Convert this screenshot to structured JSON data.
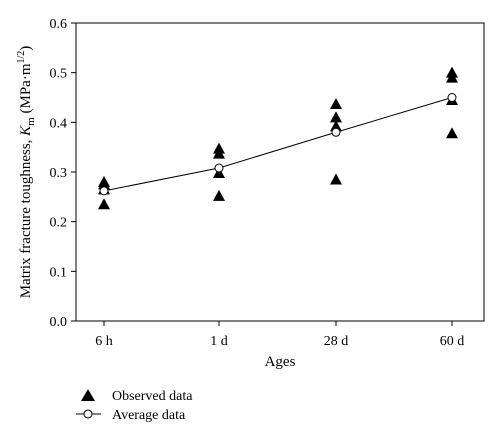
{
  "chart_data": {
    "type": "scatter",
    "title": "",
    "xlabel": "Ages",
    "ylabel_prefix": "Matrix fracture toughness, ",
    "ylabel_symbol": "K",
    "ylabel_subscript": "m",
    "ylabel_unit_open": " (MPa·m",
    "ylabel_unit_superscript": "1/2",
    "ylabel_unit_close": ")",
    "categories": [
      "6 h",
      "1 d",
      "28 d",
      "60 d"
    ],
    "ylim": [
      0,
      0.6
    ],
    "yticks": [
      0.0,
      0.1,
      0.2,
      0.3,
      0.4,
      0.5,
      0.6
    ],
    "ytick_labels": [
      "0.0",
      "0.1",
      "0.2",
      "0.3",
      "0.4",
      "0.5",
      "0.6"
    ],
    "grid": false,
    "legend_position": "bottom-left",
    "series": [
      {
        "name": "Observed data",
        "marker": "filled-triangle",
        "values": [
          [
            0.28,
            0.275,
            0.265,
            0.235
          ],
          [
            0.347,
            0.337,
            0.298,
            0.252
          ],
          [
            0.437,
            0.41,
            0.392,
            0.285
          ],
          [
            0.5,
            0.49,
            0.445,
            0.378
          ]
        ]
      },
      {
        "name": "Average data",
        "marker": "open-circle-line",
        "values": [
          0.262,
          0.308,
          0.38,
          0.45
        ]
      }
    ]
  }
}
